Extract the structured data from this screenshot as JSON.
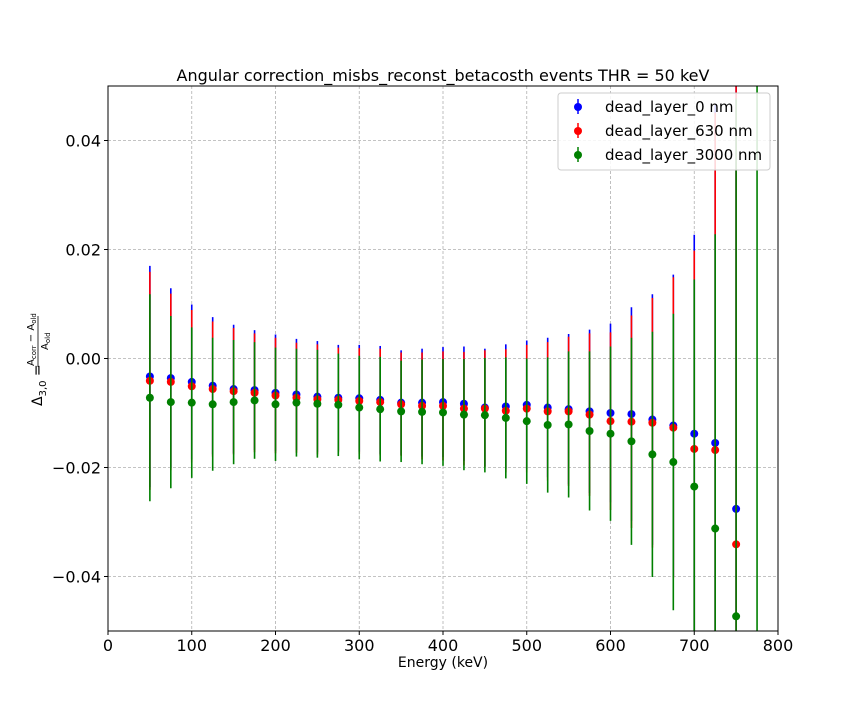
{
  "chart_data": {
    "type": "scatter",
    "title": "Angular correction_misbs_reconst_betacosth events THR = 50 keV",
    "xlabel": "Energy (keV)",
    "ylabel_prefix": "Δ",
    "ylabel_sub": "3,0",
    "ylabel_eq": " = ",
    "ylabel_num_a": "A",
    "ylabel_num_a_sub": "corr",
    "ylabel_num_minus": " − ",
    "ylabel_num_b": "A",
    "ylabel_num_b_sub": "old",
    "ylabel_den": "A",
    "ylabel_den_sub": "old",
    "xlim": [
      0,
      800
    ],
    "ylim": [
      -0.05,
      0.05
    ],
    "xticks": [
      0,
      100,
      200,
      300,
      400,
      500,
      600,
      700,
      800
    ],
    "xtick_labels": [
      "0",
      "100",
      "200",
      "300",
      "400",
      "500",
      "600",
      "700",
      "800"
    ],
    "yticks": [
      -0.04,
      -0.02,
      0.0,
      0.02,
      0.04
    ],
    "ytick_labels": [
      "−0.04",
      "−0.02",
      "0.00",
      "0.02",
      "0.04"
    ],
    "grid": true,
    "legend_position": "top-right",
    "x": [
      50,
      75,
      100,
      125,
      150,
      175,
      200,
      225,
      250,
      275,
      300,
      325,
      350,
      375,
      400,
      425,
      450,
      475,
      500,
      525,
      550,
      575,
      600,
      625,
      650,
      675,
      700,
      725,
      750
    ],
    "series": [
      {
        "name": "dead_layer_0 nm",
        "color": "#0000ff",
        "values": [
          -0.0033,
          -0.0036,
          -0.0043,
          -0.005,
          -0.0056,
          -0.0058,
          -0.0063,
          -0.0066,
          -0.007,
          -0.0072,
          -0.0073,
          -0.0076,
          -0.0081,
          -0.0081,
          -0.008,
          -0.0083,
          -0.009,
          -0.0088,
          -0.0085,
          -0.009,
          -0.0093,
          -0.0097,
          -0.01,
          -0.0102,
          -0.0112,
          -0.0123,
          -0.0138,
          -0.0155,
          -0.0276
        ],
        "errors": [
          0.0203,
          0.0165,
          0.0142,
          0.0126,
          0.0118,
          0.011,
          0.0107,
          0.0102,
          0.0102,
          0.0097,
          0.0098,
          0.0099,
          0.0096,
          0.0099,
          0.0101,
          0.0105,
          0.0108,
          0.0114,
          0.0118,
          0.0128,
          0.0138,
          0.015,
          0.0164,
          0.0196,
          0.023,
          0.0277,
          0.0365,
          0.062,
          0.09
        ]
      },
      {
        "name": "dead_layer_630 nm",
        "color": "#ff0000",
        "values": [
          -0.0041,
          -0.0043,
          -0.0051,
          -0.0056,
          -0.006,
          -0.0063,
          -0.0068,
          -0.0072,
          -0.0075,
          -0.0076,
          -0.0078,
          -0.008,
          -0.0084,
          -0.0087,
          -0.0087,
          -0.0092,
          -0.0092,
          -0.0096,
          -0.0092,
          -0.0097,
          -0.0097,
          -0.0103,
          -0.0115,
          -0.0116,
          -0.0118,
          -0.0127,
          -0.0166,
          -0.0168,
          -0.0341
        ],
        "errors": [
          0.02,
          0.0162,
          0.014,
          0.0124,
          0.0116,
          0.0109,
          0.0106,
          0.0101,
          0.0101,
          0.0096,
          0.0097,
          0.0098,
          0.0095,
          0.0098,
          0.01,
          0.0104,
          0.0107,
          0.0113,
          0.0117,
          0.0127,
          0.0137,
          0.0149,
          0.0163,
          0.0195,
          0.0229,
          0.0276,
          0.0364,
          0.0619,
          0.09
        ]
      },
      {
        "name": "dead_layer_3000 nm",
        "color": "#008000",
        "values": [
          -0.0072,
          -0.008,
          -0.0081,
          -0.0084,
          -0.008,
          -0.0077,
          -0.0084,
          -0.0081,
          -0.0083,
          -0.0085,
          -0.009,
          -0.0093,
          -0.0097,
          -0.0098,
          -0.0099,
          -0.0103,
          -0.0104,
          -0.0109,
          -0.0115,
          -0.0122,
          -0.0121,
          -0.0133,
          -0.0138,
          -0.0152,
          -0.0176,
          -0.019,
          -0.0235,
          -0.0312,
          -0.0473
        ],
        "errors": [
          0.019,
          0.0158,
          0.0138,
          0.0122,
          0.0114,
          0.0107,
          0.0104,
          0.0099,
          0.0099,
          0.0094,
          0.0095,
          0.0096,
          0.0093,
          0.0096,
          0.0098,
          0.0102,
          0.0105,
          0.0111,
          0.0115,
          0.0124,
          0.0134,
          0.0146,
          0.016,
          0.019,
          0.0225,
          0.0272,
          0.038,
          0.054,
          0.095
        ]
      }
    ],
    "extra_markers": [
      {
        "series": 2,
        "x": 775,
        "error_only": true,
        "value": 0.0,
        "error": 0.08
      }
    ]
  }
}
